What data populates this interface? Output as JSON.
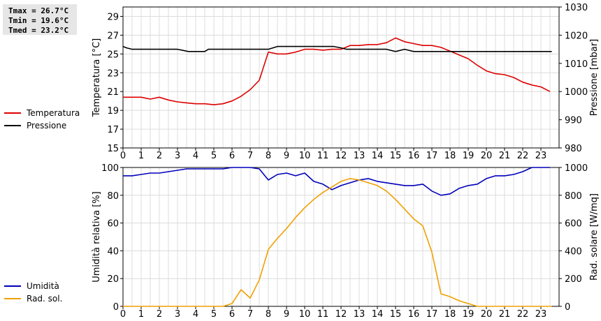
{
  "stats": {
    "tmax": "Tmax = 26.7°C",
    "tmin": "Tmin = 19.6°C",
    "tmed": "Tmed = 23.2°C"
  },
  "legend_top": [
    {
      "label": "Temperatura",
      "color": "#dd0000"
    },
    {
      "label": "Pressione",
      "color": "#000000"
    }
  ],
  "legend_bottom": [
    {
      "label": "Umidità",
      "color": "#0000bb"
    },
    {
      "label": "Rad. sol.",
      "color": "#f0a000"
    }
  ],
  "chart_data": [
    {
      "type": "line",
      "x_ticks": [
        "0",
        "1",
        "2",
        "3",
        "4",
        "5",
        "6",
        "7",
        "8",
        "9",
        "10",
        "11",
        "12",
        "13",
        "14",
        "15",
        "16",
        "17",
        "18",
        "19",
        "20",
        "21",
        "22",
        "23"
      ],
      "xlim": [
        0,
        24
      ],
      "ylabel": "Temperatura [°C]",
      "ylim": [
        15,
        30
      ],
      "y_ticks": [
        "15",
        "17",
        "19",
        "21",
        "23",
        "25",
        "27",
        "29"
      ],
      "y2label": "Pressione [mbar]",
      "y2lim": [
        980,
        1030
      ],
      "y2_ticks": [
        "980",
        "990",
        "1000",
        "1010",
        "1020",
        "1030"
      ],
      "grid": true,
      "series": [
        {
          "name": "Temperatura",
          "axis": "left",
          "color": "#dd0000",
          "x": [
            0,
            1,
            1.5,
            2,
            2.5,
            3,
            3.5,
            4,
            4.5,
            5,
            5.5,
            6,
            6.5,
            7,
            7.5,
            8,
            8.5,
            9,
            9.5,
            10,
            10.5,
            11,
            11.5,
            12,
            12.5,
            13,
            13.5,
            14,
            14.5,
            15,
            15.5,
            16,
            16.5,
            17,
            17.5,
            18,
            18.5,
            19,
            19.5,
            20,
            20.5,
            21,
            21.5,
            22,
            22.5,
            23,
            23.5
          ],
          "y": [
            20.4,
            20.4,
            20.2,
            20.4,
            20.1,
            19.9,
            19.8,
            19.7,
            19.7,
            19.6,
            19.7,
            20.0,
            20.5,
            21.2,
            22.2,
            25.2,
            25.0,
            25.0,
            25.2,
            25.5,
            25.5,
            25.4,
            25.5,
            25.5,
            25.9,
            25.9,
            26.0,
            26.0,
            26.2,
            26.7,
            26.3,
            26.1,
            25.9,
            25.9,
            25.7,
            25.3,
            24.9,
            24.5,
            23.8,
            23.2,
            22.9,
            22.8,
            22.5,
            22.0,
            21.7,
            21.5,
            21.0
          ]
        },
        {
          "name": "Pressione",
          "axis": "right",
          "color": "#000000",
          "x": [
            0,
            0.2,
            0.5,
            1,
            1.5,
            2,
            2.5,
            3,
            3.3,
            3.6,
            4,
            4.5,
            4.7,
            5,
            5.5,
            6,
            6.5,
            7,
            7.5,
            8,
            8.5,
            9,
            9.5,
            10,
            10.5,
            11,
            11.3,
            11.6,
            12,
            12.3,
            12.6,
            13,
            13.5,
            14,
            14.5,
            15,
            15.5,
            16,
            16.5,
            17,
            17.5,
            18,
            19,
            20,
            21,
            22,
            23,
            23.6
          ],
          "y": [
            1016,
            1015.5,
            1015,
            1015,
            1015,
            1015,
            1015,
            1015,
            1014.6,
            1014.2,
            1014.2,
            1014.2,
            1015,
            1015,
            1015,
            1015,
            1015,
            1015,
            1015,
            1015,
            1016,
            1016,
            1016,
            1016,
            1016,
            1016,
            1016,
            1016,
            1015.5,
            1015,
            1015,
            1015,
            1015,
            1015,
            1015,
            1014.2,
            1015,
            1014.2,
            1014.2,
            1014.2,
            1014.2,
            1014.2,
            1014.2,
            1014.2,
            1014.2,
            1014.2,
            1014.2,
            1014.2
          ]
        }
      ]
    },
    {
      "type": "line",
      "x_ticks": [
        "0",
        "0.5",
        "1",
        "1.5",
        "2",
        "2.5",
        "3",
        "3.5",
        "4",
        "4.5",
        "5",
        "5.5",
        "6",
        "6.5",
        "7",
        "7.5",
        "8",
        "8.5",
        "9",
        "9.5",
        "10",
        "10.5",
        "11",
        "11.5",
        "12",
        "12.5",
        "13",
        "13.5",
        "14",
        "14.5",
        "15",
        "15.5",
        "16",
        "16.5",
        "17",
        "17.5",
        "18",
        "18.5",
        "19",
        "19.5",
        "20",
        "20.5",
        "21",
        "21.5",
        "22",
        "22.5",
        "23",
        "23.5"
      ],
      "x_labels": [
        "0",
        "1",
        "2",
        "3",
        "4",
        "5",
        "6",
        "7",
        "8",
        "9",
        "10",
        "11",
        "12",
        "13",
        "14",
        "15",
        "16",
        "17",
        "18",
        "19",
        "20",
        "21",
        "22",
        "23"
      ],
      "xlim": [
        0,
        24
      ],
      "ylabel": "Umidità relativa [%]",
      "ylim": [
        0,
        100
      ],
      "y_ticks": [
        "0",
        "20",
        "40",
        "60",
        "80",
        "100"
      ],
      "y2label": "Rad. solare [W/mq]",
      "y2lim": [
        0,
        1000
      ],
      "y2_ticks": [
        "0",
        "200",
        "400",
        "600",
        "800",
        "1000"
      ],
      "grid": true,
      "series": [
        {
          "name": "Umidità",
          "axis": "left",
          "color": "#0000bb",
          "x": [
            0,
            0.5,
            1,
            1.5,
            2,
            2.5,
            3,
            3.5,
            4,
            4.5,
            5,
            5.5,
            6,
            6.5,
            7,
            7.5,
            8,
            8.5,
            9,
            9.5,
            10,
            10.5,
            11,
            11.5,
            12,
            12.5,
            13,
            13.5,
            14,
            14.5,
            15,
            15.5,
            16,
            16.5,
            17,
            17.5,
            18,
            18.5,
            19,
            19.5,
            20,
            20.5,
            21,
            21.5,
            22,
            22.5,
            23,
            23.5
          ],
          "y": [
            94,
            94,
            95,
            96,
            96,
            97,
            98,
            99,
            99,
            99,
            99,
            99,
            100,
            100,
            100,
            99,
            91,
            95,
            96,
            94,
            96,
            90,
            88,
            84,
            87,
            89,
            91,
            92,
            90,
            89,
            88,
            87,
            87,
            88,
            83,
            80,
            81,
            85,
            87,
            88,
            92,
            94,
            94,
            95,
            97,
            100,
            100,
            100
          ]
        },
        {
          "name": "Rad. sol.",
          "axis": "right",
          "color": "#f0a000",
          "x": [
            0,
            1,
            2,
            3,
            4,
            5,
            5.5,
            6,
            6.5,
            7,
            7.5,
            8,
            8.5,
            9,
            9.5,
            10,
            10.5,
            11,
            11.5,
            12,
            12.5,
            13,
            13.5,
            14,
            14.5,
            15,
            15.5,
            16,
            16.5,
            17,
            17.5,
            18,
            18.5,
            19,
            19.5,
            20,
            21,
            22,
            23,
            23.6
          ],
          "y": [
            0,
            0,
            0,
            0,
            0,
            0,
            0,
            20,
            120,
            60,
            190,
            410,
            490,
            560,
            640,
            710,
            770,
            820,
            860,
            900,
            920,
            910,
            890,
            870,
            830,
            770,
            700,
            630,
            580,
            390,
            90,
            70,
            40,
            20,
            0,
            0,
            0,
            0,
            0,
            0
          ]
        }
      ]
    }
  ]
}
